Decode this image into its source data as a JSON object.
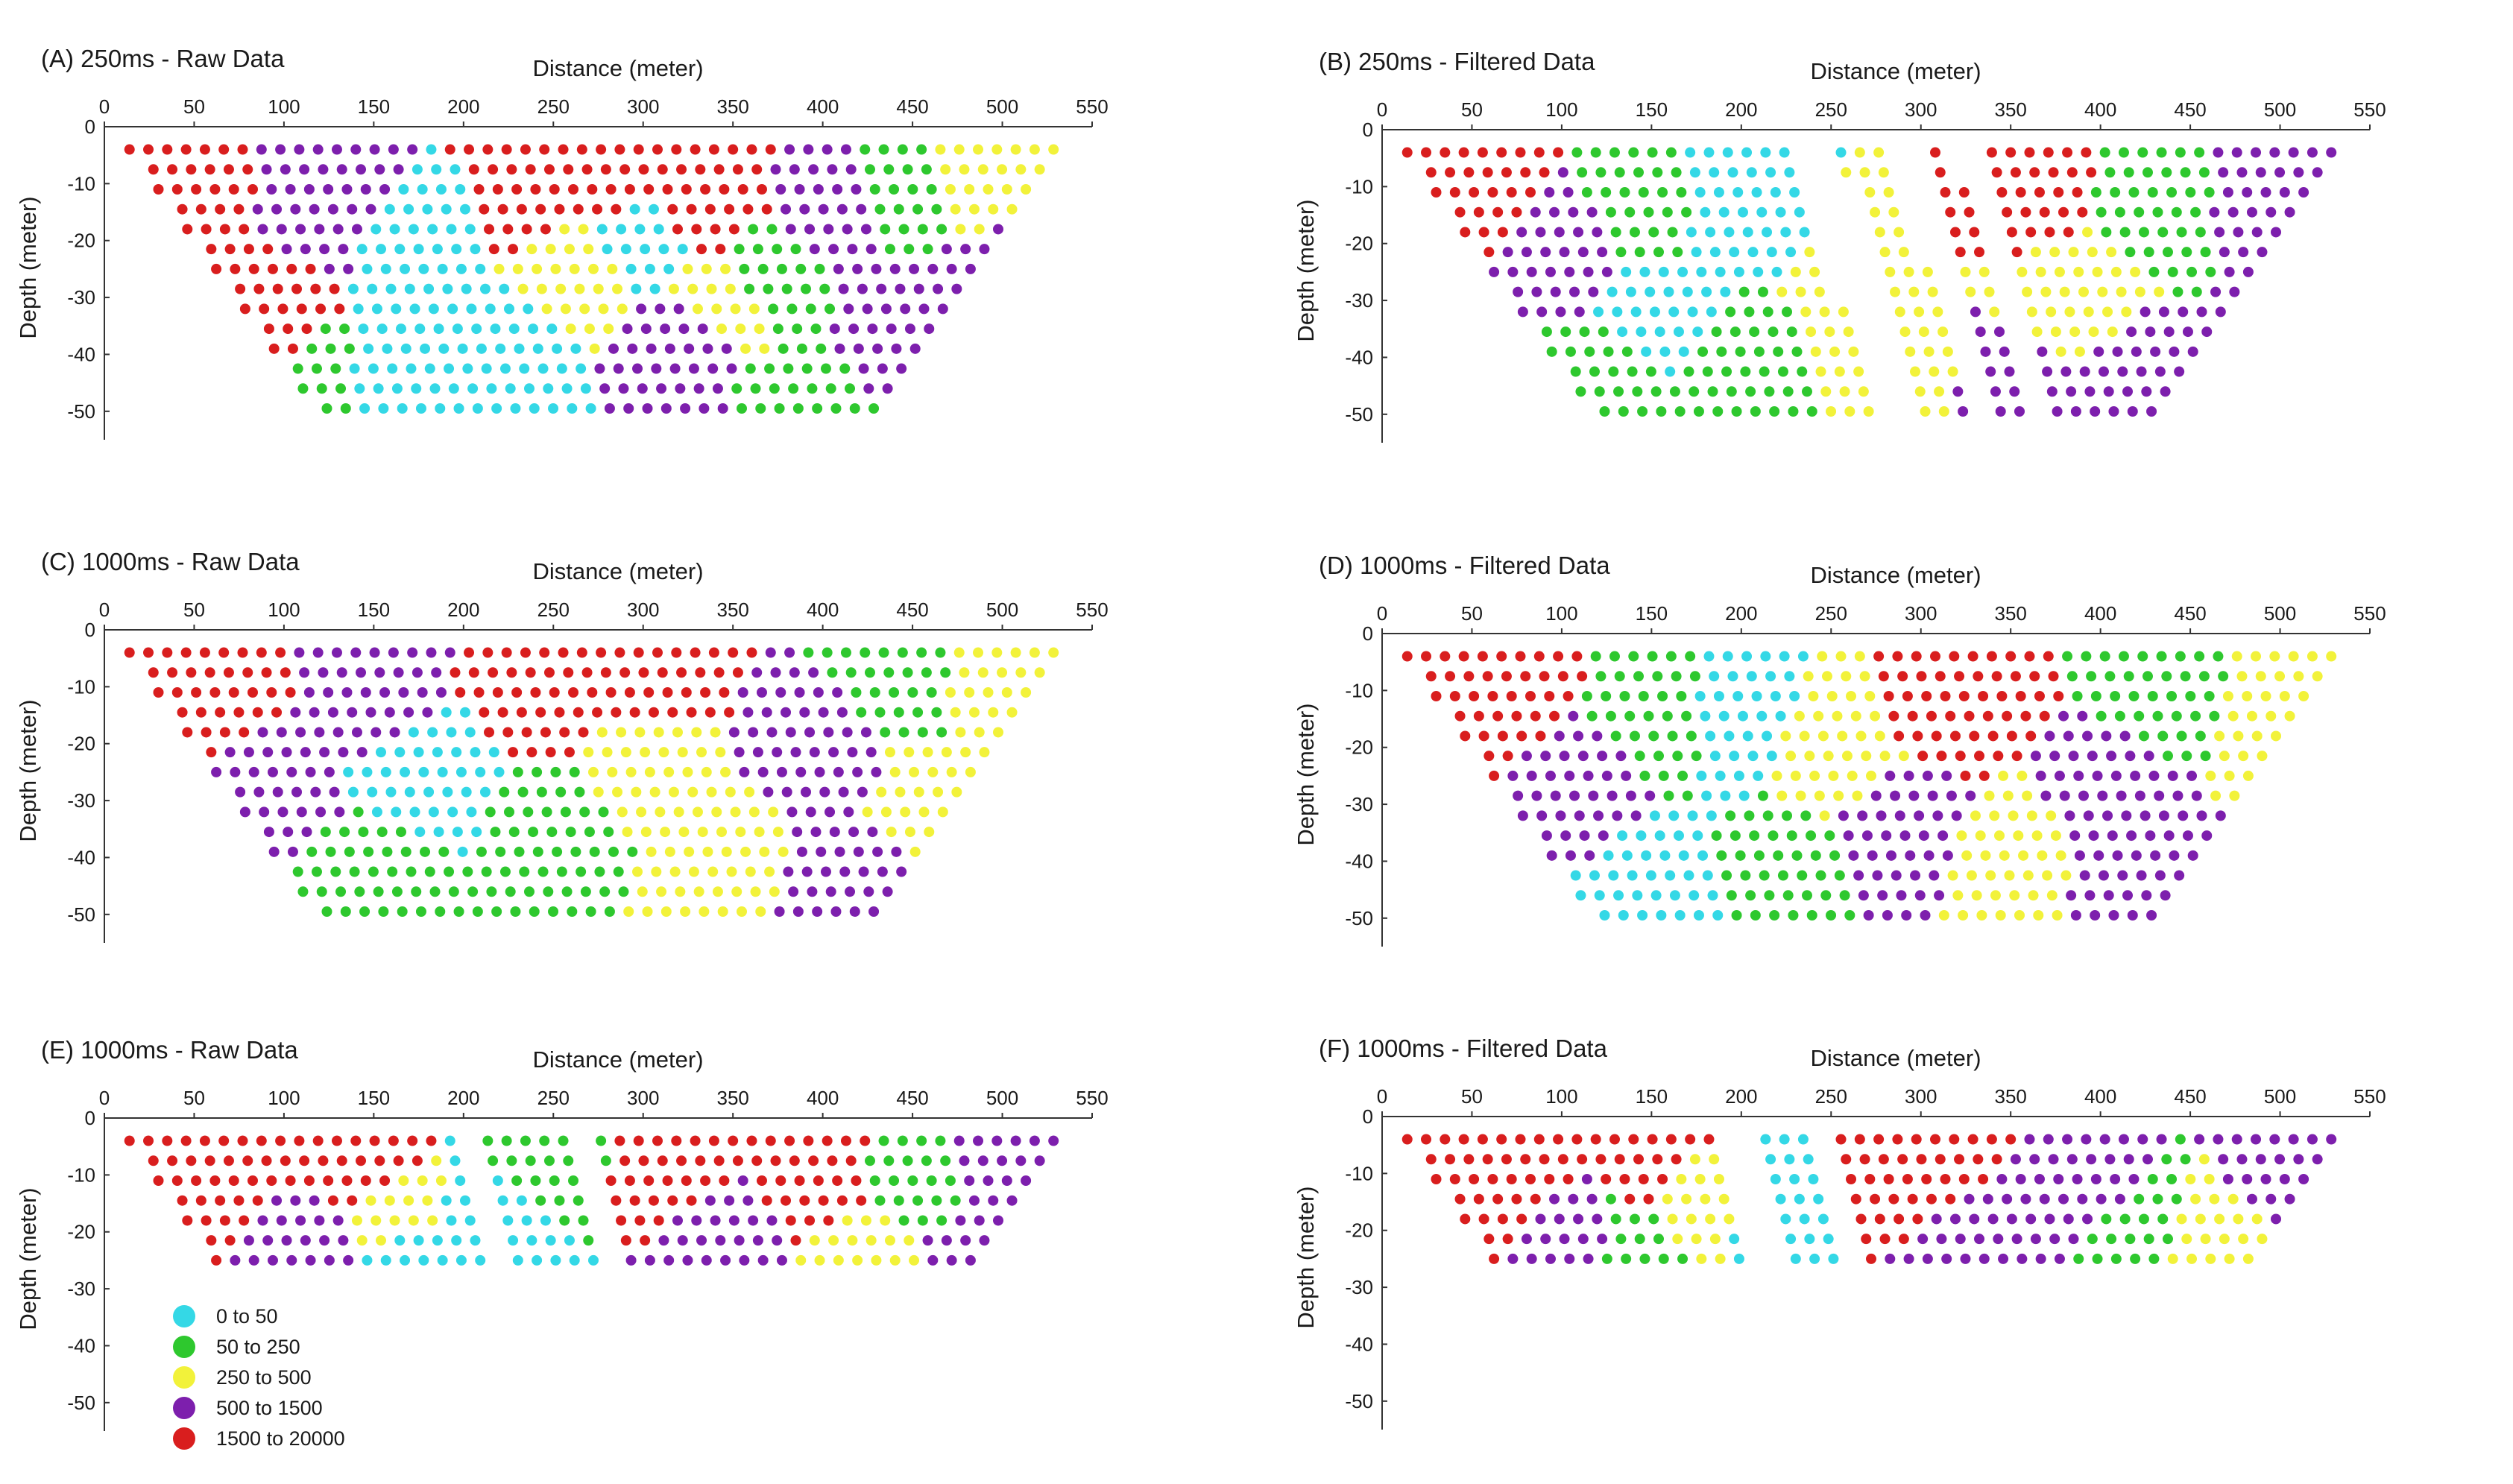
{
  "legend": {
    "items": [
      {
        "label": "0  to  50",
        "color": "#34d8e6"
      },
      {
        "label": "50  to  250",
        "color": "#2ec82e"
      },
      {
        "label": "250  to  500",
        "color": "#f2f23a"
      },
      {
        "label": "500  to  1500",
        "color": "#7d1fad"
      },
      {
        "label": "1500  to  20000",
        "color": "#d91e1e"
      }
    ]
  },
  "chart_data": [
    {
      "type": "scatter",
      "title": "(A) 250ms - Raw Data",
      "xlabel": "Distance (meter)",
      "ylabel": "Depth (meter)",
      "xlim": [
        0,
        550
      ],
      "ylim": [
        -55,
        0
      ],
      "xticks": [
        "0",
        "50",
        "100",
        "150",
        "200",
        "250",
        "300",
        "350",
        "400",
        "450",
        "500",
        "550"
      ],
      "yticks": [
        "0",
        "-10",
        "-20",
        "-30",
        "-40",
        "-50"
      ],
      "max_depth": 52,
      "zones": [
        {
          "x": 40,
          "y": -15,
          "class": 4
        },
        {
          "x": 90,
          "y": -35,
          "class": 4
        },
        {
          "x": 130,
          "y": -12,
          "class": 3
        },
        {
          "x": 175,
          "y": -20,
          "class": 0
        },
        {
          "x": 160,
          "y": -42,
          "class": 0
        },
        {
          "x": 120,
          "y": -45,
          "class": 1
        },
        {
          "x": 225,
          "y": -40,
          "class": 0
        },
        {
          "x": 240,
          "y": -12,
          "class": 4
        },
        {
          "x": 275,
          "y": -10,
          "class": 4
        },
        {
          "x": 265,
          "y": -25,
          "class": 2
        },
        {
          "x": 295,
          "y": -20,
          "class": 0
        },
        {
          "x": 330,
          "y": -12,
          "class": 4
        },
        {
          "x": 325,
          "y": -40,
          "class": 3
        },
        {
          "x": 370,
          "y": -28,
          "class": 1
        },
        {
          "x": 410,
          "y": -15,
          "class": 3
        },
        {
          "x": 440,
          "y": -12,
          "class": 1
        },
        {
          "x": 490,
          "y": -10,
          "class": 2
        },
        {
          "x": 500,
          "y": -25,
          "class": 3
        },
        {
          "x": 445,
          "y": -35,
          "class": 3
        },
        {
          "x": 380,
          "y": -47,
          "class": 1
        },
        {
          "x": 350,
          "y": -32,
          "class": 2
        }
      ]
    },
    {
      "type": "scatter",
      "title": "(B) 250ms - Filtered Data",
      "xlabel": "Distance (meter)",
      "ylabel": "Depth (meter)",
      "xlim": [
        0,
        550
      ],
      "ylim": [
        -55,
        0
      ],
      "xticks": [
        "0",
        "50",
        "100",
        "150",
        "200",
        "250",
        "300",
        "350",
        "400",
        "450",
        "500",
        "550"
      ],
      "yticks": [
        "0",
        "-10",
        "-20",
        "-30",
        "-40",
        "-50"
      ],
      "max_depth": 52,
      "gaps": [
        {
          "x1": 232,
          "x2": 255
        },
        {
          "x1": 285,
          "x2": 300
        },
        {
          "x1": 318,
          "x2": 330
        }
      ],
      "zones": [
        {
          "x": 60,
          "y": -12,
          "class": 4
        },
        {
          "x": 100,
          "y": -20,
          "class": 3
        },
        {
          "x": 140,
          "y": -12,
          "class": 1
        },
        {
          "x": 155,
          "y": -35,
          "class": 0
        },
        {
          "x": 130,
          "y": -45,
          "class": 1
        },
        {
          "x": 200,
          "y": -12,
          "class": 0
        },
        {
          "x": 190,
          "y": -42,
          "class": 1
        },
        {
          "x": 270,
          "y": -25,
          "class": 2
        },
        {
          "x": 290,
          "y": -40,
          "class": 2
        },
        {
          "x": 360,
          "y": -10,
          "class": 4
        },
        {
          "x": 380,
          "y": -30,
          "class": 2
        },
        {
          "x": 430,
          "y": -12,
          "class": 1
        },
        {
          "x": 495,
          "y": -12,
          "class": 3
        },
        {
          "x": 420,
          "y": -45,
          "class": 3
        },
        {
          "x": 350,
          "y": -45,
          "class": 3
        }
      ]
    },
    {
      "type": "scatter",
      "title": "(C) 1000ms - Raw Data",
      "xlabel": "Distance (meter)",
      "ylabel": "Depth (meter)",
      "xlim": [
        0,
        550
      ],
      "ylim": [
        -55,
        0
      ],
      "xticks": [
        "0",
        "50",
        "100",
        "150",
        "200",
        "250",
        "300",
        "350",
        "400",
        "450",
        "500",
        "550"
      ],
      "yticks": [
        "0",
        "-10",
        "-20",
        "-30",
        "-40",
        "-50"
      ],
      "max_depth": 52,
      "zones": [
        {
          "x": 60,
          "y": -12,
          "class": 4
        },
        {
          "x": 90,
          "y": -28,
          "class": 3
        },
        {
          "x": 150,
          "y": -10,
          "class": 3
        },
        {
          "x": 180,
          "y": -25,
          "class": 0
        },
        {
          "x": 150,
          "y": -45,
          "class": 1
        },
        {
          "x": 240,
          "y": -10,
          "class": 4
        },
        {
          "x": 300,
          "y": -10,
          "class": 4
        },
        {
          "x": 255,
          "y": -35,
          "class": 1
        },
        {
          "x": 300,
          "y": -25,
          "class": 2
        },
        {
          "x": 340,
          "y": -40,
          "class": 2
        },
        {
          "x": 400,
          "y": -20,
          "class": 3
        },
        {
          "x": 440,
          "y": -10,
          "class": 1
        },
        {
          "x": 500,
          "y": -10,
          "class": 2
        },
        {
          "x": 420,
          "y": -45,
          "class": 3
        },
        {
          "x": 460,
          "y": -30,
          "class": 2
        }
      ]
    },
    {
      "type": "scatter",
      "title": "(D) 1000ms - Filtered Data",
      "xlabel": "Distance (meter)",
      "ylabel": "Depth (meter)",
      "xlim": [
        0,
        550
      ],
      "ylim": [
        -55,
        0
      ],
      "xticks": [
        "0",
        "50",
        "100",
        "150",
        "200",
        "250",
        "300",
        "350",
        "400",
        "450",
        "500",
        "550"
      ],
      "yticks": [
        "0",
        "-10",
        "-20",
        "-30",
        "-40",
        "-50"
      ],
      "max_depth": 52,
      "zones": [
        {
          "x": 70,
          "y": -12,
          "class": 4
        },
        {
          "x": 110,
          "y": -25,
          "class": 3
        },
        {
          "x": 150,
          "y": -15,
          "class": 1
        },
        {
          "x": 200,
          "y": -15,
          "class": 0
        },
        {
          "x": 160,
          "y": -45,
          "class": 0
        },
        {
          "x": 220,
          "y": -42,
          "class": 1
        },
        {
          "x": 250,
          "y": -20,
          "class": 2
        },
        {
          "x": 320,
          "y": -12,
          "class": 4
        },
        {
          "x": 350,
          "y": -40,
          "class": 2
        },
        {
          "x": 410,
          "y": -28,
          "class": 3
        },
        {
          "x": 440,
          "y": -12,
          "class": 1
        },
        {
          "x": 495,
          "y": -15,
          "class": 2
        },
        {
          "x": 420,
          "y": -45,
          "class": 3
        },
        {
          "x": 290,
          "y": -35,
          "class": 3
        }
      ]
    },
    {
      "type": "scatter",
      "title": "(E) 1000ms - Raw Data",
      "xlabel": "Distance (meter)",
      "ylabel": "Depth (meter)",
      "xlim": [
        0,
        550
      ],
      "ylim": [
        -55,
        0
      ],
      "xticks": [
        "0",
        "50",
        "100",
        "150",
        "200",
        "250",
        "300",
        "350",
        "400",
        "450",
        "500",
        "550"
      ],
      "yticks": [
        "0",
        "-10",
        "-20",
        "-30",
        "-40",
        "-50"
      ],
      "max_depth": 27,
      "gaps": [
        {
          "x1": 200,
          "x2": 208
        },
        {
          "x1": 262,
          "x2": 272
        }
      ],
      "zones": [
        {
          "x": 60,
          "y": -10,
          "class": 4
        },
        {
          "x": 140,
          "y": -10,
          "class": 4
        },
        {
          "x": 120,
          "y": -22,
          "class": 3
        },
        {
          "x": 155,
          "y": -18,
          "class": 2
        },
        {
          "x": 160,
          "y": -25,
          "class": 0
        },
        {
          "x": 225,
          "y": -18,
          "class": 0
        },
        {
          "x": 250,
          "y": -10,
          "class": 1
        },
        {
          "x": 310,
          "y": -10,
          "class": 4
        },
        {
          "x": 340,
          "y": -22,
          "class": 3
        },
        {
          "x": 400,
          "y": -12,
          "class": 4
        },
        {
          "x": 420,
          "y": -22,
          "class": 2
        },
        {
          "x": 450,
          "y": -12,
          "class": 1
        },
        {
          "x": 500,
          "y": -10,
          "class": 3
        },
        {
          "x": 490,
          "y": -22,
          "class": 3
        }
      ]
    },
    {
      "type": "scatter",
      "title": "(F) 1000ms - Filtered Data",
      "xlabel": "Distance (meter)",
      "ylabel": "Depth (meter)",
      "xlim": [
        0,
        550
      ],
      "ylim": [
        -55,
        0
      ],
      "xticks": [
        "0",
        "50",
        "100",
        "150",
        "200",
        "250",
        "300",
        "350",
        "400",
        "450",
        "500",
        "550"
      ],
      "yticks": [
        "0",
        "-10",
        "-20",
        "-30",
        "-40",
        "-50"
      ],
      "max_depth": 27,
      "gaps": [
        {
          "x1": 190,
          "x2": 205
        },
        {
          "x1": 238,
          "x2": 252
        }
      ],
      "zones": [
        {
          "x": 70,
          "y": -10,
          "class": 4
        },
        {
          "x": 150,
          "y": -8,
          "class": 4
        },
        {
          "x": 110,
          "y": -22,
          "class": 3
        },
        {
          "x": 140,
          "y": -22,
          "class": 1
        },
        {
          "x": 175,
          "y": -15,
          "class": 2
        },
        {
          "x": 220,
          "y": -18,
          "class": 0
        },
        {
          "x": 300,
          "y": -10,
          "class": 4
        },
        {
          "x": 330,
          "y": -22,
          "class": 3
        },
        {
          "x": 400,
          "y": -12,
          "class": 3
        },
        {
          "x": 420,
          "y": -18,
          "class": 1
        },
        {
          "x": 460,
          "y": -22,
          "class": 2
        },
        {
          "x": 505,
          "y": -10,
          "class": 3
        }
      ]
    }
  ]
}
